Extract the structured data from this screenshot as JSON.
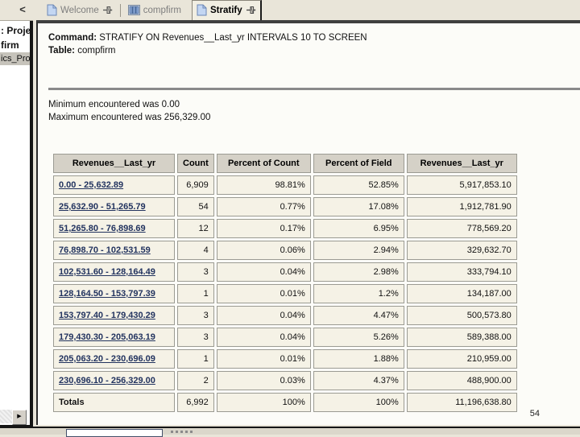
{
  "sidebar": {
    "collapse_label": "<",
    "items": [
      {
        "label": ": Proje"
      },
      {
        "label": "firm"
      },
      {
        "label": "ics_Pro"
      }
    ]
  },
  "tabs": [
    {
      "label": "Welcome",
      "icon": "page-icon",
      "pinned": true,
      "active": false
    },
    {
      "label": "compfirm",
      "icon": "table-icon",
      "pinned": false,
      "active": false
    },
    {
      "label": "Stratify",
      "icon": "page-icon",
      "pinned": true,
      "active": true
    }
  ],
  "report": {
    "command_label": "Command:",
    "command_text": "STRATIFY ON Revenues__Last_yr INTERVALS 10 TO SCREEN",
    "table_label": "Table:",
    "table_name": "compfirm",
    "minimum_line": "Minimum encountered was 0.00",
    "maximum_line": "Maximum encountered was 256,329.00"
  },
  "result_table": {
    "headers": [
      "Revenues__Last_yr",
      "Count",
      "Percent of Count",
      "Percent of Field",
      "Revenues__Last_yr"
    ],
    "rows": [
      [
        "0.00 - 25,632.89",
        "6,909",
        "98.81%",
        "52.85%",
        "5,917,853.10"
      ],
      [
        "25,632.90 - 51,265.79",
        "54",
        "0.77%",
        "17.08%",
        "1,912,781.90"
      ],
      [
        "51,265.80 - 76,898.69",
        "12",
        "0.17%",
        "6.95%",
        "778,569.20"
      ],
      [
        "76,898.70 - 102,531.59",
        "4",
        "0.06%",
        "2.94%",
        "329,632.70"
      ],
      [
        "102,531.60 - 128,164.49",
        "3",
        "0.04%",
        "2.98%",
        "333,794.10"
      ],
      [
        "128,164.50 - 153,797.39",
        "1",
        "0.01%",
        "1.2%",
        "134,187.00"
      ],
      [
        "153,797.40 - 179,430.29",
        "3",
        "0.04%",
        "4.47%",
        "500,573.80"
      ],
      [
        "179,430.30 - 205,063.19",
        "3",
        "0.04%",
        "5.26%",
        "589,388.00"
      ],
      [
        "205,063.20 - 230,696.09",
        "1",
        "0.01%",
        "1.88%",
        "210,959.00"
      ],
      [
        "230,696.10 - 256,329.00",
        "2",
        "0.03%",
        "4.37%",
        "488,900.00"
      ]
    ],
    "totals": [
      "Totals",
      "6,992",
      "100%",
      "100%",
      "11,196,638.80"
    ]
  },
  "page_number": "54",
  "colors": {
    "chrome_beige": "#E9E5D9",
    "header_cell_bg": "#D5D1C7",
    "data_cell_bg": "#F5F2E6",
    "link_blue": "#22335F",
    "icon_blue": "#89A7D6"
  }
}
